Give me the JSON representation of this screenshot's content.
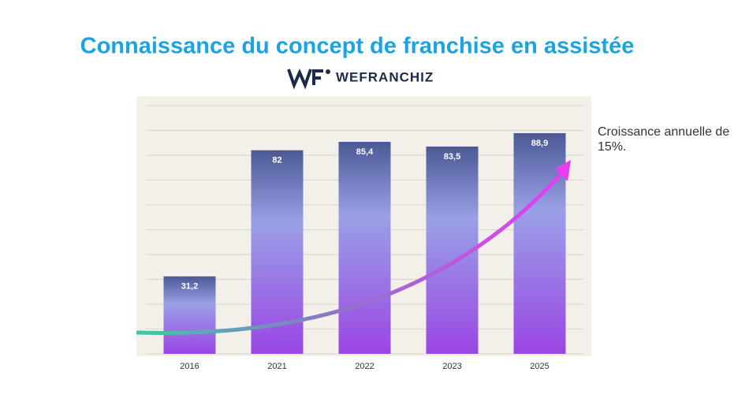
{
  "chart_data": {
    "type": "bar",
    "title": "Connaissance du concept de franchise en assistée",
    "brand": "WEFRANCHIZ",
    "annotation": "Croissance annuelle de 15%.",
    "categories": [
      "2016",
      "2021",
      "2022",
      "2023",
      "2025"
    ],
    "values": [
      31.2,
      82,
      85.4,
      83.5,
      88.9
    ],
    "value_labels": [
      "31,2",
      "82",
      "85,4",
      "83,5",
      "88,9"
    ],
    "color": "#9a46e4",
    "ylim": [
      0,
      104
    ],
    "yticks": [
      0,
      10,
      20,
      30,
      40,
      50,
      60,
      70,
      80,
      90,
      100
    ],
    "grid": true
  }
}
